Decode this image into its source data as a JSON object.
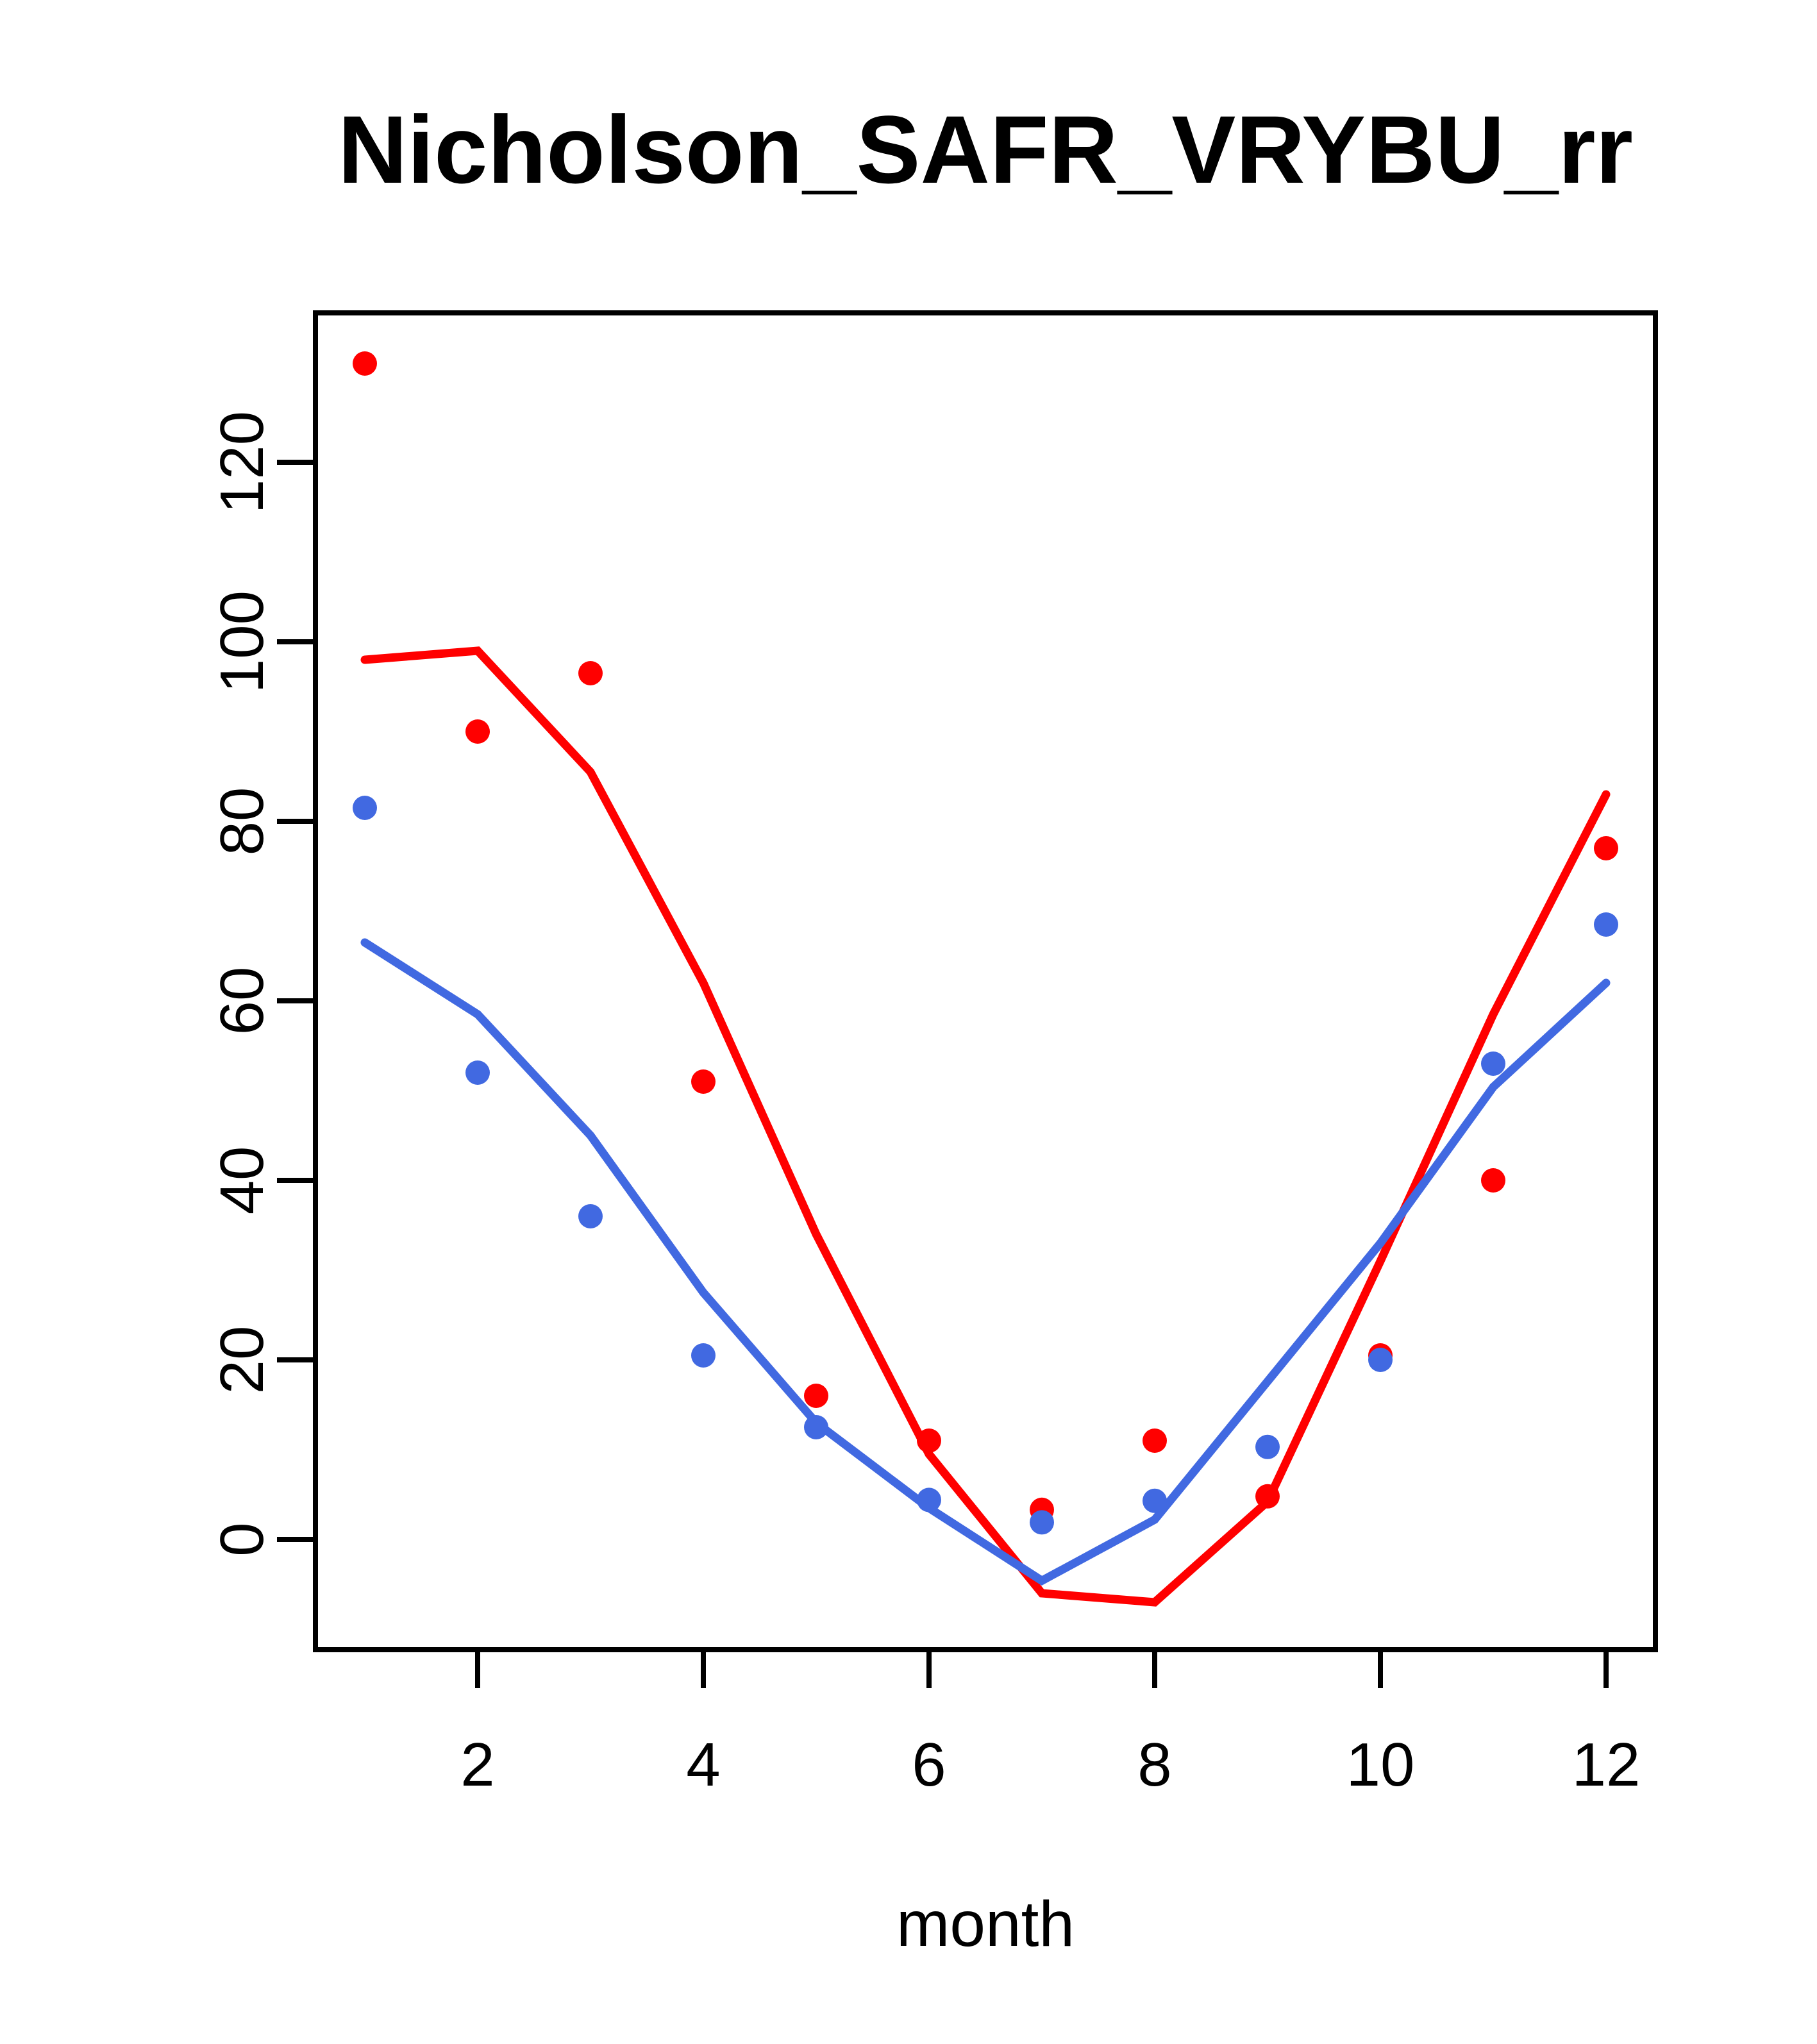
{
  "chart_data": {
    "type": "line",
    "title": "Nicholson_SAFR_VRYBU_rr",
    "xlabel": "month",
    "ylabel": "",
    "x": [
      1,
      2,
      3,
      4,
      5,
      6,
      7,
      8,
      9,
      10,
      11,
      12
    ],
    "xticks": [
      2,
      4,
      6,
      8,
      10,
      12
    ],
    "yticks": [
      0,
      20,
      40,
      60,
      80,
      100,
      120
    ],
    "xlim": [
      0.56,
      12.44
    ],
    "ylim": [
      -12.3,
      136.6
    ],
    "grid": "off",
    "legend": "none",
    "colors": {
      "red": "#FF0000",
      "blue": "#4169E1",
      "axis": "#000000",
      "background": "#FFFFFF"
    },
    "series": [
      {
        "name": "red-line",
        "kind": "line",
        "color": "#FF0000",
        "values": [
          98,
          99,
          85.5,
          62,
          34,
          9.5,
          -6,
          -7,
          4.2,
          31,
          58.5,
          83
        ]
      },
      {
        "name": "blue-line",
        "kind": "line",
        "color": "#4169E1",
        "values": [
          66.5,
          58.5,
          45,
          27.5,
          13,
          3.5,
          -4.6,
          2.2,
          17.6,
          33,
          50.4,
          62
        ]
      },
      {
        "name": "red-points",
        "kind": "scatter",
        "color": "#FF0000",
        "values": [
          131,
          90,
          96.5,
          51,
          16,
          11,
          3.3,
          11,
          4.8,
          20.5,
          40,
          77
        ]
      },
      {
        "name": "blue-points",
        "kind": "scatter",
        "color": "#4169E1",
        "values": [
          81.5,
          52,
          36,
          20.5,
          12.5,
          4.4,
          1.9,
          4.3,
          10.3,
          20,
          53,
          68.5
        ]
      }
    ]
  }
}
